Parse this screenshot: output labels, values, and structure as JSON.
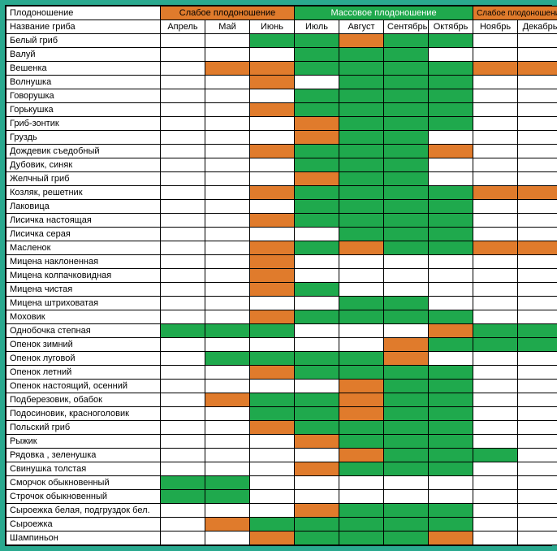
{
  "type": "table-heatmap",
  "colors": {
    "orange": "#e07b2c",
    "green": "#1fa94d",
    "white": "#ffffff",
    "border": "#000000",
    "page_bg": "#2aa98f"
  },
  "header": {
    "row1_label": "Плодоношение",
    "row2_label": "Название гриба",
    "groups": [
      {
        "label": "Слабое плодоношение",
        "span": 3,
        "bg": "#e07b2c"
      },
      {
        "label": "Массовое плодоношение",
        "span": 4,
        "bg": "#1fa94d"
      },
      {
        "label": "Слабое плодоношение",
        "span": 2,
        "bg": "#e07b2c"
      }
    ],
    "months": [
      "Апрель",
      "Май",
      "Июнь",
      "Июль",
      "Август",
      "Сентябрь",
      "Октябрь",
      "Ноябрь",
      "Декабрь"
    ]
  },
  "rows": [
    {
      "name": "Белый гриб",
      "cells": [
        "",
        "",
        "g",
        "g",
        "o",
        "g",
        "g",
        "",
        ""
      ]
    },
    {
      "name": "Валуй",
      "cells": [
        "",
        "",
        "",
        "g",
        "g",
        "g",
        "",
        "",
        ""
      ]
    },
    {
      "name": "Вешенка",
      "cells": [
        "",
        "o",
        "o",
        "g",
        "g",
        "g",
        "g",
        "o",
        "o"
      ]
    },
    {
      "name": "Волнушка",
      "cells": [
        "",
        "",
        "o",
        "",
        "g",
        "g",
        "g",
        "",
        ""
      ]
    },
    {
      "name": "Говорушка",
      "cells": [
        "",
        "",
        "",
        "g",
        "g",
        "g",
        "g",
        "",
        ""
      ]
    },
    {
      "name": "Горькушка",
      "cells": [
        "",
        "",
        "o",
        "g",
        "g",
        "g",
        "g",
        "",
        ""
      ]
    },
    {
      "name": "Гриб-зонтик",
      "cells": [
        "",
        "",
        "",
        "o",
        "g",
        "g",
        "g",
        "",
        ""
      ]
    },
    {
      "name": "Груздь",
      "cells": [
        "",
        "",
        "",
        "o",
        "g",
        "g",
        "",
        "",
        ""
      ]
    },
    {
      "name": "Дождевик съедобный",
      "cells": [
        "",
        "",
        "o",
        "g",
        "g",
        "g",
        "o",
        "",
        ""
      ]
    },
    {
      "name": "Дубовик, синяк",
      "cells": [
        "",
        "",
        "",
        "g",
        "g",
        "g",
        "",
        "",
        ""
      ]
    },
    {
      "name": "Желчный гриб",
      "cells": [
        "",
        "",
        "",
        "o",
        "g",
        "g",
        "",
        "",
        ""
      ]
    },
    {
      "name": "Козляк, решетник",
      "cells": [
        "",
        "",
        "o",
        "g",
        "g",
        "g",
        "g",
        "o",
        "o"
      ]
    },
    {
      "name": "Лаковица",
      "cells": [
        "",
        "",
        "",
        "g",
        "g",
        "g",
        "g",
        "",
        ""
      ]
    },
    {
      "name": "Лисичка настоящая",
      "cells": [
        "",
        "",
        "o",
        "g",
        "g",
        "g",
        "g",
        "",
        ""
      ]
    },
    {
      "name": "Лисичка серая",
      "cells": [
        "",
        "",
        "",
        "",
        "g",
        "g",
        "g",
        "",
        ""
      ]
    },
    {
      "name": "Масленок",
      "cells": [
        "",
        "",
        "o",
        "g",
        "o",
        "g",
        "g",
        "o",
        "o"
      ]
    },
    {
      "name": "Мицена наклоненная",
      "cells": [
        "",
        "",
        "o",
        "",
        "",
        "",
        "",
        "",
        ""
      ]
    },
    {
      "name": "Мицена колпачковидная",
      "cells": [
        "",
        "",
        "o",
        "",
        "",
        "",
        "",
        "",
        ""
      ]
    },
    {
      "name": "Мицена чистая",
      "cells": [
        "",
        "",
        "o",
        "g",
        "",
        "",
        "",
        "",
        ""
      ]
    },
    {
      "name": "Мицена штриховатая",
      "cells": [
        "",
        "",
        "",
        "",
        "g",
        "g",
        "",
        "",
        ""
      ]
    },
    {
      "name": "Моховик",
      "cells": [
        "",
        "",
        "o",
        "g",
        "g",
        "g",
        "g",
        "",
        ""
      ]
    },
    {
      "name": "Однобочка степная",
      "cells": [
        "g",
        "g",
        "g",
        "",
        "",
        "",
        "o",
        "g",
        "g"
      ]
    },
    {
      "name": "Опенок зимний",
      "cells": [
        "",
        "",
        "",
        "",
        "",
        "o",
        "g",
        "g",
        "g"
      ]
    },
    {
      "name": "Опенок луговой",
      "cells": [
        "",
        "g",
        "g",
        "g",
        "g",
        "o",
        "",
        "",
        ""
      ]
    },
    {
      "name": "Опенок летний",
      "cells": [
        "",
        "",
        "o",
        "g",
        "g",
        "g",
        "g",
        "",
        ""
      ]
    },
    {
      "name": "Опенок настоящий, осенний",
      "cells": [
        "",
        "",
        "",
        "",
        "o",
        "g",
        "g",
        "",
        ""
      ]
    },
    {
      "name": "Подберезовик, обабок",
      "cells": [
        "",
        "o",
        "g",
        "g",
        "o",
        "g",
        "g",
        "",
        ""
      ]
    },
    {
      "name": "Подосиновик, красноголовик",
      "cells": [
        "",
        "",
        "g",
        "g",
        "o",
        "g",
        "g",
        "",
        ""
      ]
    },
    {
      "name": "Польский гриб",
      "cells": [
        "",
        "",
        "o",
        "g",
        "g",
        "g",
        "g",
        "",
        ""
      ]
    },
    {
      "name": "Рыжик",
      "cells": [
        "",
        "",
        "",
        "o",
        "g",
        "g",
        "g",
        "",
        ""
      ]
    },
    {
      "name": "Рядовка , зеленушка",
      "cells": [
        "",
        "",
        "",
        "",
        "o",
        "g",
        "g",
        "g",
        ""
      ]
    },
    {
      "name": "Свинушка толстая",
      "cells": [
        "",
        "",
        "",
        "o",
        "g",
        "g",
        "g",
        "",
        ""
      ]
    },
    {
      "name": "Сморчок обыкновенный",
      "cells": [
        "g",
        "g",
        "",
        "",
        "",
        "",
        "",
        "",
        ""
      ]
    },
    {
      "name": "Строчок обыкновенный",
      "cells": [
        "g",
        "g",
        "",
        "",
        "",
        "",
        "",
        "",
        ""
      ]
    },
    {
      "name": "Сыроежка белая, подгруздок бел.",
      "cells": [
        "",
        "",
        "",
        "o",
        "g",
        "g",
        "g",
        "",
        ""
      ]
    },
    {
      "name": "Сыроежка",
      "cells": [
        "",
        "o",
        "g",
        "g",
        "g",
        "g",
        "g",
        "",
        ""
      ]
    },
    {
      "name": "Шампиньон",
      "cells": [
        "",
        "",
        "o",
        "g",
        "g",
        "g",
        "o",
        "",
        ""
      ]
    }
  ],
  "col_widths": {
    "name": "190px",
    "month": "55px"
  }
}
